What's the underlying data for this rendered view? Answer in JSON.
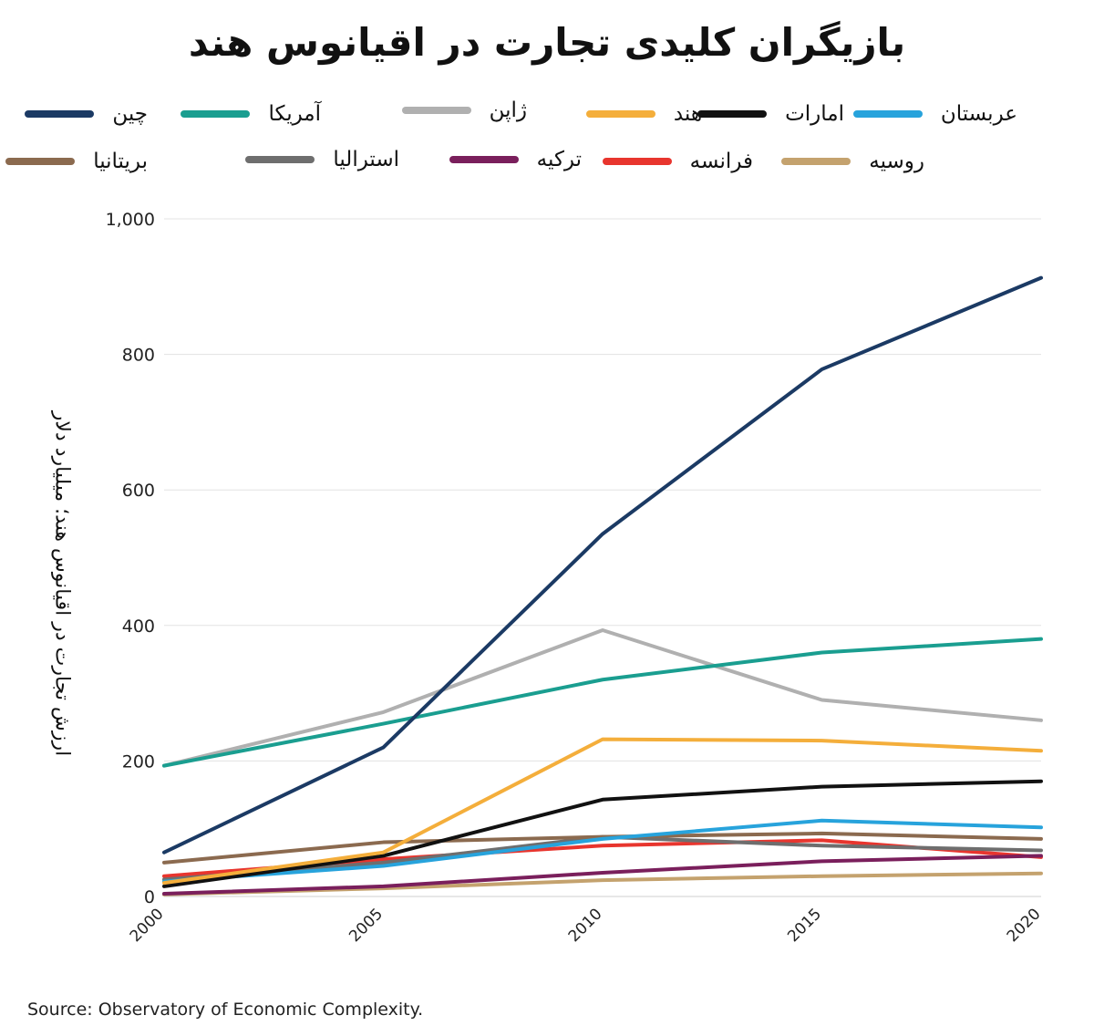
{
  "title": "بازیگران کلیدی تجارت در اقیانوس هند",
  "source": "Source: Observatory of Economic Complexity.",
  "chart_data": {
    "type": "line",
    "title": "بازیگران کلیدی تجارت در اقیانوس هند",
    "ylabel": "ارزش تجارت در اقیانوس هند؛ میلیارد دلار",
    "xlabel": "",
    "x": [
      2000,
      2005,
      2010,
      2015,
      2020
    ],
    "x_tick_labels": [
      "2000",
      "2005",
      "2010",
      "2015",
      "2020"
    ],
    "ylim": [
      0,
      1000
    ],
    "y_ticks": [
      0,
      200,
      400,
      600,
      800,
      1000
    ],
    "y_tick_labels": [
      "0",
      "200",
      "400",
      "600",
      "800",
      "1,000"
    ],
    "grid": true,
    "legend_position": "top",
    "series": [
      {
        "name": "چین",
        "color": "#1b3a64",
        "values": [
          65,
          220,
          535,
          778,
          913
        ]
      },
      {
        "name": "آمریکا",
        "color": "#1a9e90",
        "values": [
          193,
          255,
          320,
          360,
          380
        ]
      },
      {
        "name": "ژاپن",
        "color": "#b0b0b0",
        "values": [
          193,
          272,
          393,
          290,
          260
        ]
      },
      {
        "name": "هند",
        "color": "#f4ae3b",
        "values": [
          20,
          65,
          232,
          230,
          215
        ]
      },
      {
        "name": "امارات",
        "color": "#111111",
        "values": [
          15,
          60,
          143,
          162,
          170
        ]
      },
      {
        "name": "عربستان",
        "color": "#27a3dc",
        "values": [
          22,
          45,
          85,
          112,
          102
        ]
      },
      {
        "name": "بریتانیا",
        "color": "#8b6a4f",
        "values": [
          50,
          80,
          88,
          93,
          85
        ]
      },
      {
        "name": "استرالیا",
        "color": "#6e6e6e",
        "values": [
          25,
          50,
          88,
          75,
          68
        ]
      },
      {
        "name": "ترکیه",
        "color": "#7a1f5c",
        "values": [
          4,
          15,
          35,
          52,
          60
        ]
      },
      {
        "name": "فرانسه",
        "color": "#e8352e",
        "values": [
          30,
          55,
          75,
          83,
          58
        ]
      },
      {
        "name": "روسیه",
        "color": "#c4a26e",
        "values": [
          3,
          12,
          24,
          30,
          34
        ]
      }
    ]
  }
}
